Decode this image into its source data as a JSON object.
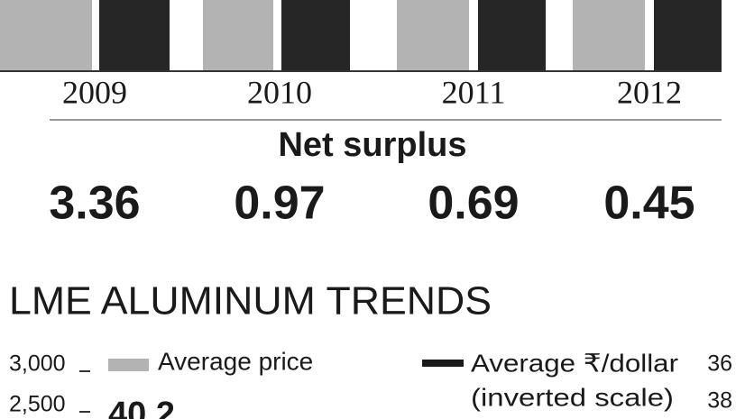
{
  "top_panel": {
    "years": [
      "2009",
      "2010",
      "2011",
      "2012"
    ],
    "net_surplus": {
      "title": "Net surplus",
      "values": [
        "3.36",
        "0.97",
        "0.69",
        "0.45"
      ]
    }
  },
  "lme_trends": {
    "title": "LME ALUMINUM TRENDS",
    "left_ticks": [
      "3,000",
      "2,500"
    ],
    "right_ticks": [
      "36",
      "38"
    ],
    "legend": [
      "Average price",
      "Average ₹/dollar",
      "(inverted scale)"
    ],
    "annotation": "40.2"
  }
}
